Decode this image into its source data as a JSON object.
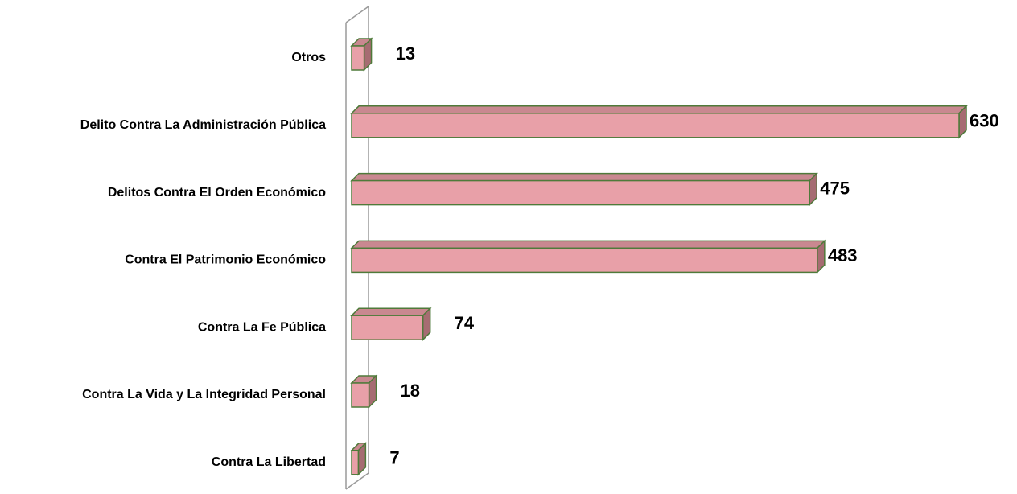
{
  "chart_data": {
    "type": "bar3d_horizontal",
    "categories": [
      "Otros",
      "Delito Contra La Administración Pública",
      "Delitos Contra El Orden Económico",
      "Contra El Patrimonio Económico",
      "Contra La Fe Pública",
      "Contra La Vida y La Integridad Personal",
      "Contra La Libertad"
    ],
    "values": [
      13,
      630,
      475,
      483,
      74,
      18,
      7
    ],
    "color": "#e8a0a8"
  }
}
